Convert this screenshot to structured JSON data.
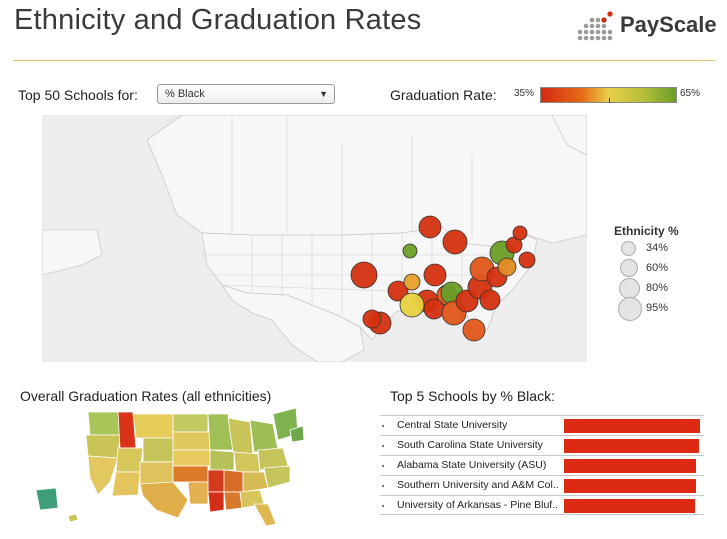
{
  "header": {
    "title": "Ethnicity and Graduation Rates",
    "logo_text": "PayScale"
  },
  "filter": {
    "label": "Top 50 Schools for:",
    "selected": "% Black"
  },
  "graduation_legend": {
    "label": "Graduation Rate:",
    "min": "35%",
    "max": "65%",
    "colors": [
      "#d42a12",
      "#e66a16",
      "#e9cf4a",
      "#b8bf3a",
      "#6a9e28"
    ]
  },
  "ethnicity_legend": {
    "title": "Ethnicity %",
    "items": [
      "34%",
      "60%",
      "80%",
      "95%"
    ]
  },
  "overall": {
    "title": "Overall Graduation Rates (all ethnicities)"
  },
  "top5": {
    "title": "Top 5 Schools by % Black:",
    "bar_color": "#dc2b12",
    "rows": [
      {
        "name": "Central State University",
        "value": 1.0
      },
      {
        "name": "South Carolina State University",
        "value": 0.99
      },
      {
        "name": "Alabama State University (ASU)",
        "value": 0.97
      },
      {
        "name": "Southern University and A&M Col..",
        "value": 0.97
      },
      {
        "name": "University of Arkansas - Pine Bluf..",
        "value": 0.96
      }
    ]
  }
}
